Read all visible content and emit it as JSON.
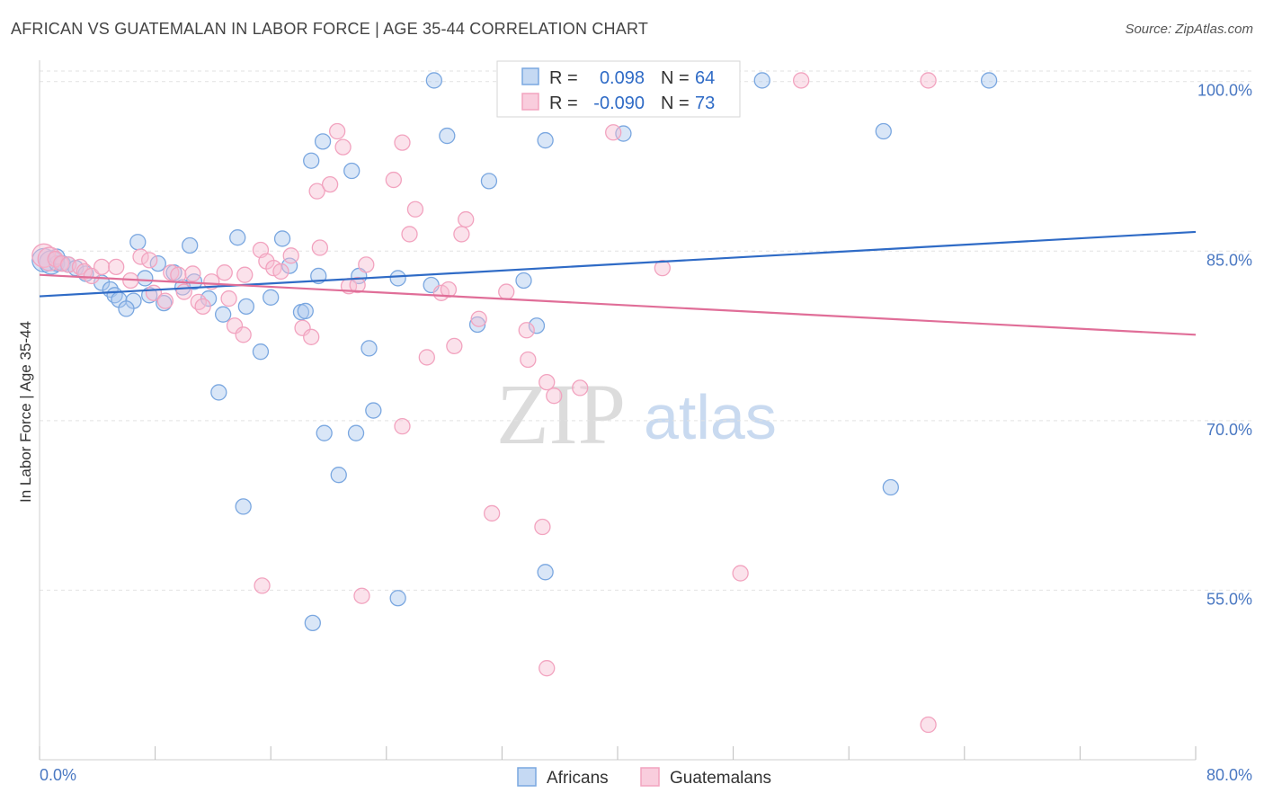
{
  "chart_data": {
    "type": "scatter",
    "title": "AFRICAN VS GUATEMALAN IN LABOR FORCE | AGE 35-44 CORRELATION CHART",
    "source": "Source: ZipAtlas.com",
    "xlabel": "",
    "ylabel": "In Labor Force | Age 35-44",
    "xlim": [
      0,
      80
    ],
    "ylim": [
      40,
      103
    ],
    "x_tick_labels": [
      "0.0%",
      "80.0%"
    ],
    "y_ticks": [
      55,
      70,
      85,
      100
    ],
    "y_tick_labels": [
      "55.0%",
      "70.0%",
      "85.0%",
      "100.0%"
    ],
    "grid": "horizontal dashed",
    "watermark": [
      "ZIP",
      "atlas"
    ],
    "colors": {
      "africans": "#7aa7e0",
      "guatemalans": "#f2a3bf",
      "africans_line": "#2f6bc6",
      "guatemalans_line": "#e06e98"
    },
    "legend": {
      "placement": "top-center",
      "rows": [
        {
          "r_label": "R = ",
          "r_value": "0.098",
          "n_label": "N = ",
          "n_value": "64"
        },
        {
          "r_label": "R = ",
          "r_value": "-0.090",
          "n_label": "N = ",
          "n_value": "73"
        }
      ]
    },
    "series": [
      {
        "name": "Africans",
        "color": "#7aa7e0",
        "trend": {
          "x": [
            0,
            80
          ],
          "y": [
            81.0,
            86.7
          ]
        },
        "points": [
          [
            0.3,
            84.2
          ],
          [
            0.8,
            84.0
          ],
          [
            1.2,
            83.9
          ],
          [
            1.6,
            83.9
          ],
          [
            2.0,
            83.8
          ],
          [
            2.5,
            83.5
          ],
          [
            3.2,
            83.0
          ],
          [
            4.3,
            82.2
          ],
          [
            4.9,
            81.6
          ],
          [
            5.2,
            81.1
          ],
          [
            5.5,
            80.7
          ],
          [
            6.5,
            80.6
          ],
          [
            6.8,
            85.8
          ],
          [
            7.3,
            82.6
          ],
          [
            8.2,
            83.9
          ],
          [
            8.6,
            80.4
          ],
          [
            9.3,
            83.1
          ],
          [
            9.9,
            81.8
          ],
          [
            10.4,
            85.5
          ],
          [
            10.7,
            82.3
          ],
          [
            11.7,
            80.8
          ],
          [
            12.7,
            79.4
          ],
          [
            13.7,
            86.2
          ],
          [
            14.3,
            80.1
          ],
          [
            15.3,
            76.1
          ],
          [
            12.4,
            72.5
          ],
          [
            16.0,
            80.9
          ],
          [
            16.8,
            86.1
          ],
          [
            17.3,
            83.7
          ],
          [
            18.1,
            79.6
          ],
          [
            18.4,
            79.7
          ],
          [
            19.3,
            82.8
          ],
          [
            19.6,
            94.7
          ],
          [
            18.8,
            93.0
          ],
          [
            19.7,
            68.9
          ],
          [
            20.7,
            65.2
          ],
          [
            21.6,
            92.1
          ],
          [
            21.9,
            68.9
          ],
          [
            22.1,
            82.8
          ],
          [
            22.8,
            76.4
          ],
          [
            23.1,
            70.9
          ],
          [
            24.8,
            82.6
          ],
          [
            27.1,
            82.0
          ],
          [
            28.2,
            95.2
          ],
          [
            30.3,
            78.5
          ],
          [
            31.1,
            91.2
          ],
          [
            33.5,
            82.4
          ],
          [
            34.4,
            78.4
          ],
          [
            35.0,
            94.8
          ],
          [
            35.0,
            56.6
          ],
          [
            40.4,
            95.4
          ],
          [
            42.1,
            98.4
          ],
          [
            58.4,
            95.6
          ],
          [
            58.9,
            64.1
          ],
          [
            65.7,
            100.1
          ],
          [
            50.0,
            100.1
          ],
          [
            33.3,
            100.1
          ],
          [
            27.3,
            100.1
          ],
          [
            24.8,
            54.3
          ],
          [
            18.9,
            52.1
          ],
          [
            14.1,
            62.4
          ],
          [
            6.0,
            79.9
          ],
          [
            7.6,
            81.1
          ],
          [
            1.2,
            84.5
          ]
        ]
      },
      {
        "name": "Guatemalans",
        "color": "#f2a3bf",
        "trend": {
          "x": [
            0,
            80
          ],
          "y": [
            82.9,
            77.6
          ]
        },
        "points": [
          [
            0.3,
            84.6
          ],
          [
            0.7,
            84.3
          ],
          [
            1.1,
            84.3
          ],
          [
            1.5,
            83.9
          ],
          [
            2.0,
            83.8
          ],
          [
            2.8,
            83.6
          ],
          [
            3.1,
            83.2
          ],
          [
            3.6,
            82.8
          ],
          [
            4.3,
            83.6
          ],
          [
            5.3,
            83.6
          ],
          [
            6.3,
            82.4
          ],
          [
            7.0,
            84.5
          ],
          [
            7.6,
            84.2
          ],
          [
            7.9,
            81.3
          ],
          [
            8.7,
            80.6
          ],
          [
            9.1,
            83.1
          ],
          [
            9.6,
            82.9
          ],
          [
            10.0,
            81.4
          ],
          [
            10.6,
            83.0
          ],
          [
            11.0,
            80.5
          ],
          [
            11.3,
            80.1
          ],
          [
            11.9,
            82.3
          ],
          [
            12.8,
            83.1
          ],
          [
            13.1,
            80.8
          ],
          [
            13.5,
            78.4
          ],
          [
            14.1,
            77.6
          ],
          [
            14.2,
            82.9
          ],
          [
            15.3,
            85.1
          ],
          [
            15.7,
            84.1
          ],
          [
            16.2,
            83.5
          ],
          [
            16.7,
            83.2
          ],
          [
            17.4,
            84.6
          ],
          [
            18.2,
            78.2
          ],
          [
            18.8,
            77.4
          ],
          [
            19.2,
            90.3
          ],
          [
            19.4,
            85.3
          ],
          [
            20.1,
            90.9
          ],
          [
            20.6,
            95.6
          ],
          [
            21.0,
            94.2
          ],
          [
            21.4,
            81.9
          ],
          [
            22.0,
            82.0
          ],
          [
            22.6,
            83.8
          ],
          [
            24.5,
            91.3
          ],
          [
            25.1,
            94.6
          ],
          [
            25.6,
            86.5
          ],
          [
            26.0,
            88.7
          ],
          [
            26.8,
            75.6
          ],
          [
            27.8,
            81.3
          ],
          [
            28.3,
            81.6
          ],
          [
            28.7,
            76.6
          ],
          [
            29.2,
            86.5
          ],
          [
            29.5,
            87.8
          ],
          [
            30.4,
            79.0
          ],
          [
            32.3,
            81.4
          ],
          [
            33.7,
            78.0
          ],
          [
            33.8,
            75.4
          ],
          [
            35.1,
            73.4
          ],
          [
            35.6,
            72.2
          ],
          [
            37.4,
            72.9
          ],
          [
            39.7,
            95.5
          ],
          [
            43.1,
            83.5
          ],
          [
            43.6,
            99.9
          ],
          [
            47.1,
            100.1
          ],
          [
            52.7,
            100.1
          ],
          [
            61.5,
            100.1
          ],
          [
            25.1,
            69.5
          ],
          [
            31.3,
            61.8
          ],
          [
            34.8,
            60.6
          ],
          [
            35.1,
            48.1
          ],
          [
            48.5,
            56.5
          ],
          [
            61.5,
            43.1
          ],
          [
            15.4,
            55.4
          ],
          [
            22.3,
            54.5
          ]
        ]
      }
    ]
  },
  "bottom_legend": [
    {
      "label": "Africans"
    },
    {
      "label": "Guatemalans"
    }
  ]
}
